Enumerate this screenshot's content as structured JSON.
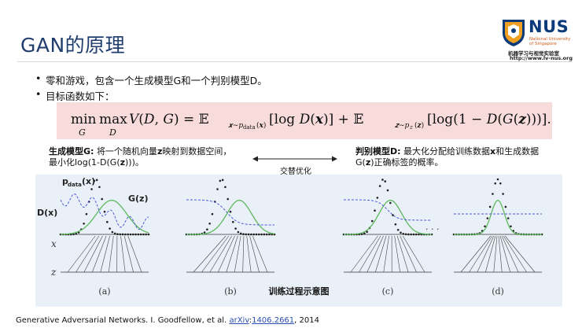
{
  "slide": {
    "title": "GAN的原理",
    "bullets": [
      "零和游戏，包含一个生成模型G和一个判别模型D。",
      "目标函数如下："
    ]
  },
  "logo": {
    "name": "NUS",
    "subtitle_line1": "National University",
    "subtitle_line2": "of Singapore",
    "lab": "机器学习与视觉实验室",
    "url": "http://www.lv-nus.org"
  },
  "generator": {
    "title": "生成模型G:",
    "text1": "将一个随机向量",
    "z": "z",
    "text2": "映射到数据空间，",
    "line2_a": "最小化log(1-D(G(",
    "line2_z": "z",
    "line2_b": ")))。"
  },
  "discriminator": {
    "title": "判别模型D:",
    "text1": "最大化分配给训练数据",
    "x": "x",
    "text2": "和生成数据",
    "line2_a": "G(",
    "line2_z": "z",
    "line2_b": ")正确标签的概率。"
  },
  "diagram": {
    "alternate_label": "交替优化",
    "caption": "训练过程示意图",
    "label_pdata": "p",
    "label_pdata_sub": "data",
    "label_pdata_tail": "(x)",
    "label_gz": "G(z)",
    "label_dx": "D(x)",
    "axis_x": "x",
    "axis_z": "z",
    "ellipsis": ". . .",
    "panels": [
      "(a)",
      "(b)",
      "(c)",
      "(d)"
    ]
  },
  "citation": {
    "text": "Generative Adversarial Networks. I. Goodfellow, et al. ",
    "link1": "arXiv",
    "sep": ":",
    "link2": "1406.2661",
    "tail": ", 2014"
  },
  "colors": {
    "title": "#1f3e6e",
    "formula_bg": "#f8dcdc",
    "diagram_bg": "#eaf0f8",
    "green": "#5cb85c",
    "blue": "#4a5bd6",
    "dots": "#222222"
  }
}
